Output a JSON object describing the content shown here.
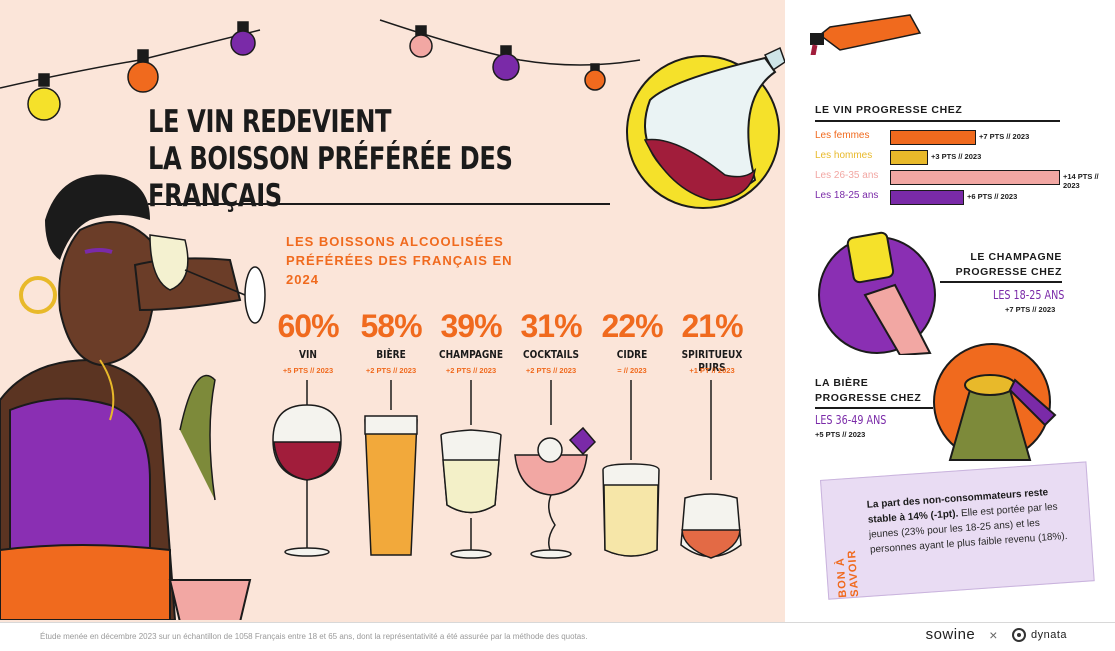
{
  "title_line1": "LE VIN REDEVIENT",
  "title_line2": "LA BOISSON PRÉFÉRÉE DES FRANÇAIS",
  "chart_data": {
    "type": "bar",
    "title": "LES BOISSONS ALCOOLISÉES PRÉFÉRÉES DES FRANÇAIS EN 2024",
    "categories": [
      "VIN",
      "BIÈRE",
      "CHAMPAGNE",
      "COCKTAILS",
      "CIDRE",
      "SPIRITUEUX PURS"
    ],
    "values": [
      60,
      58,
      39,
      31,
      22,
      21
    ],
    "value_labels": [
      "60%",
      "58%",
      "39%",
      "31%",
      "22%",
      "21%"
    ],
    "changes": [
      "+5 PTS // 2023",
      "+2 PTS // 2023",
      "+2 PTS // 2023",
      "+2 PTS // 2023",
      "= // 2023",
      "+1 PT // 2023"
    ],
    "unit": "%"
  },
  "wine_progress": {
    "title": "LE VIN PROGRESSE CHEZ",
    "groups": [
      {
        "label": "Les femmes",
        "change": "+7 PTS // 2023",
        "points": 7,
        "color": "#f06a1e"
      },
      {
        "label": "Les hommes",
        "change": "+3 PTS // 2023",
        "points": 3,
        "color": "#e8b92a"
      },
      {
        "label": "Les 26-35 ans",
        "change": "+14 PTS // 2023",
        "points": 14,
        "color": "#f2a7a3"
      },
      {
        "label": "Les 18-25 ans",
        "change": "+6 PTS // 2023",
        "points": 6,
        "color": "#7a2aa8"
      }
    ]
  },
  "champagne": {
    "title_line1": "LE CHAMPAGNE",
    "title_line2": "PROGRESSE CHEZ",
    "group": "LES 18-25 ANS",
    "change": "+7 PTS // 2023"
  },
  "beer": {
    "title_line1": "LA BIÈRE",
    "title_line2": "PROGRESSE CHEZ",
    "group": "LES 36-49 ANS",
    "change": "+5 PTS // 2023"
  },
  "bon_a_savoir": {
    "tag": "BON À SAVOIR",
    "bold": "La part des non-consommateurs reste stable à 14% (-1pt).",
    "text": " Elle est portée par les jeunes (23% pour les 18-25 ans) et les personnes ayant le plus faible revenu (18%)."
  },
  "footer": {
    "note": "Étude menée en décembre 2023 sur un échantillon de 1058 Français entre 18 et 65 ans, dont la représentativité a été assurée par la méthode des quotas.",
    "logo1": "sowine",
    "separator": "×",
    "logo2": "dynata"
  },
  "colors": {
    "orange": "#f06a1e",
    "purple": "#7a2aa8",
    "yellow": "#f5e12a",
    "background": "#fbe5d9"
  }
}
